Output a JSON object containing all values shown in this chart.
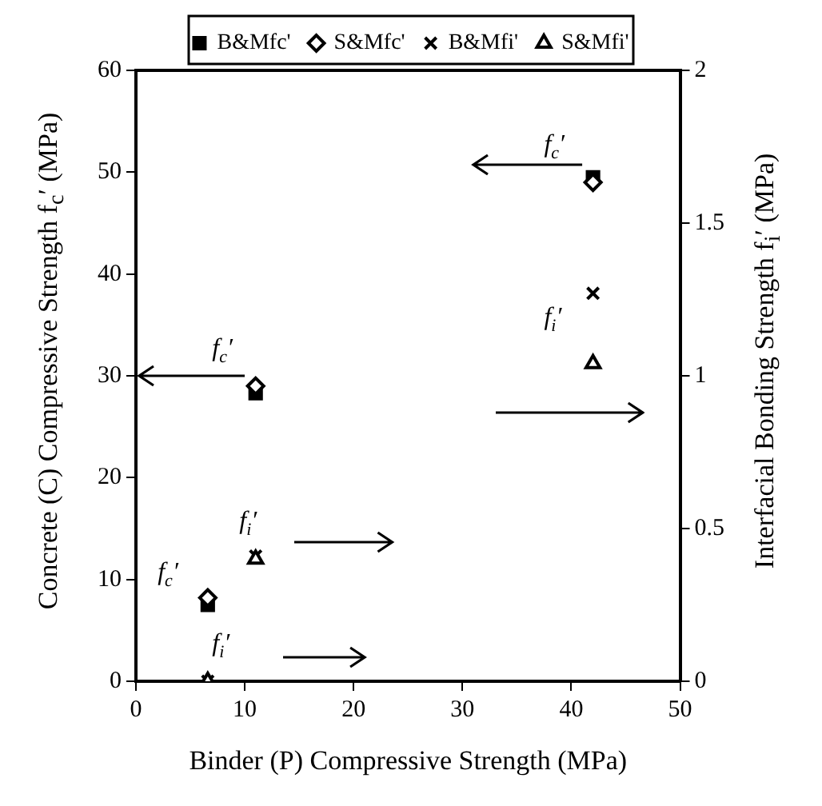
{
  "chart_data": {
    "type": "scatter",
    "xlabel": "Binder (P) Compressive Strength (MPa)",
    "ylabel": "Concrete (C) Compressive Strength f$_{c}$′ (MPa)",
    "y2label": "Interfacial Bonding Strength f$_{i}$′ (MPa)",
    "xlim": [
      0,
      50
    ],
    "xticks": [
      0,
      10,
      20,
      30,
      40,
      50
    ],
    "ylim": [
      0,
      60
    ],
    "yticks": [
      0,
      10,
      20,
      30,
      40,
      50,
      60
    ],
    "y2lim": [
      0,
      2
    ],
    "y2ticks": [
      0,
      0.5,
      1,
      1.5,
      2
    ],
    "grid": false,
    "legend": "top",
    "series": [
      {
        "name": "B&Mfc'",
        "color": "#000000",
        "marker": "square",
        "x": [
          6.6,
          11,
          42
        ],
        "values": [
          7.5,
          28.3,
          49.5
        ]
      },
      {
        "name": "S&Mfc'",
        "color": "#000000",
        "marker": "diamond",
        "x": [
          6.6,
          11,
          42
        ],
        "values": [
          8.2,
          29,
          49
        ]
      },
      {
        "name": "B&Mfi'",
        "color": "#000000",
        "marker": "cross",
        "axis": "y2",
        "x": [
          6.6,
          11,
          42
        ],
        "values": [
          0,
          0.41,
          1.27
        ]
      },
      {
        "name": "S&Mfi'",
        "color": "#000000",
        "marker": "triangle",
        "axis": "y2",
        "x": [
          6.6,
          11,
          42
        ],
        "values": [
          0,
          0.4,
          1.04
        ]
      }
    ],
    "annotations": [
      "f$_{c}$′",
      "f$_{c}$′",
      "f$_{c}$′",
      "f$_{i}$′",
      "f$_{i}$′",
      "f$_{i}$′"
    ]
  }
}
